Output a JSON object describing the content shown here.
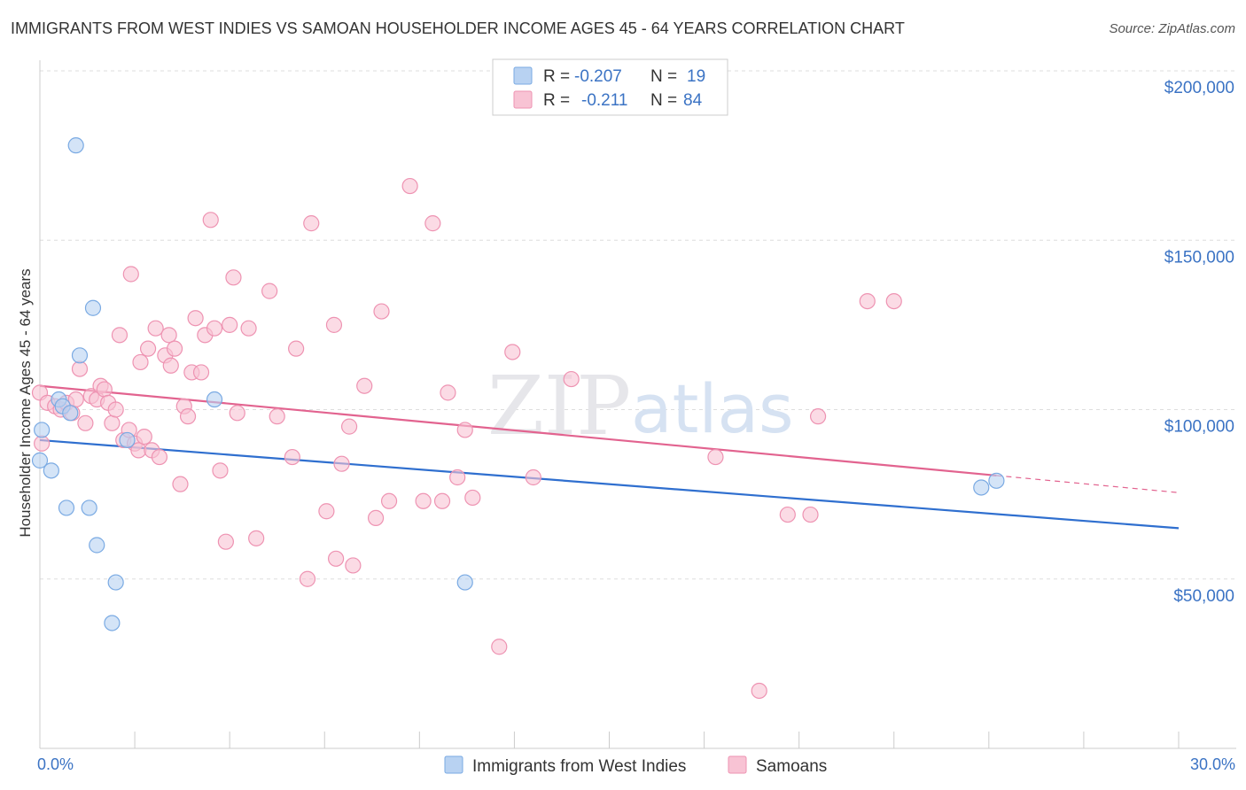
{
  "header": {
    "title": "IMMIGRANTS FROM WEST INDIES VS SAMOAN HOUSEHOLDER INCOME AGES 45 - 64 YEARS CORRELATION CHART",
    "source": "Source: ZipAtlas.com"
  },
  "watermark": {
    "part1": "ZIP",
    "part2": "atlas"
  },
  "colors": {
    "blue_fill": "#b8d2f2",
    "blue_stroke": "#7aaae3",
    "blue_line": "#2f6fcf",
    "pink_fill": "#f8c3d4",
    "pink_stroke": "#ee93b2",
    "pink_line": "#e2638f",
    "axis_text": "#3b73c4",
    "grid": "#dddddd"
  },
  "legend": {
    "rows": [
      {
        "r_label": "R =",
        "r_value": "-0.207",
        "n_label": "N =",
        "n_value": "19"
      },
      {
        "r_label": "R =",
        "r_value": "-0.211",
        "n_label": "N =",
        "n_value": "84"
      }
    ]
  },
  "chart_data": {
    "type": "scatter",
    "title": "IMMIGRANTS FROM WEST INDIES VS SAMOAN HOUSEHOLDER INCOME AGES 45 - 64 YEARS CORRELATION CHART",
    "xlabel": "",
    "ylabel": "Householder Income Ages 45 - 64 years",
    "xlim": [
      0,
      30
    ],
    "ylim": [
      0,
      200000
    ],
    "x_tick_labels": [
      "0.0%",
      "30.0%"
    ],
    "y_ticks": [
      {
        "value": 200000,
        "label": "$200,000"
      },
      {
        "value": 150000,
        "label": "$150,000"
      },
      {
        "value": 100000,
        "label": "$100,000"
      },
      {
        "value": 50000,
        "label": "$50,000"
      }
    ],
    "series": [
      {
        "name": "Immigrants from West Indies",
        "color": "blue",
        "R": -0.207,
        "N": 19,
        "trend": {
          "x0": 0,
          "y0": 91000,
          "x1": 30,
          "y1": 65000,
          "solid_until": 30
        },
        "points": [
          [
            0.0,
            85000
          ],
          [
            0.05,
            94000
          ],
          [
            0.3,
            82000
          ],
          [
            0.5,
            103000
          ],
          [
            0.6,
            101000
          ],
          [
            0.7,
            71000
          ],
          [
            0.8,
            99000
          ],
          [
            0.95,
            178000
          ],
          [
            1.05,
            116000
          ],
          [
            1.3,
            71000
          ],
          [
            1.4,
            130000
          ],
          [
            1.5,
            60000
          ],
          [
            1.9,
            37000
          ],
          [
            2.0,
            49000
          ],
          [
            2.3,
            91000
          ],
          [
            4.6,
            103000
          ],
          [
            11.2,
            49000
          ],
          [
            24.8,
            77000
          ],
          [
            25.2,
            79000
          ]
        ]
      },
      {
        "name": "Samoans",
        "color": "pink",
        "R": -0.211,
        "N": 84,
        "trend": {
          "x0": 0,
          "y0": 107000,
          "x1": 30,
          "y1": 75500,
          "solid_until": 25.2
        },
        "points": [
          [
            0.0,
            105000
          ],
          [
            0.05,
            90000
          ],
          [
            0.2,
            102000
          ],
          [
            0.4,
            101000
          ],
          [
            0.55,
            100000
          ],
          [
            0.7,
            102000
          ],
          [
            0.85,
            99000
          ],
          [
            0.95,
            103000
          ],
          [
            1.05,
            112000
          ],
          [
            1.2,
            96000
          ],
          [
            1.35,
            104000
          ],
          [
            1.5,
            103000
          ],
          [
            1.6,
            107000
          ],
          [
            1.7,
            106000
          ],
          [
            1.8,
            102000
          ],
          [
            1.9,
            96000
          ],
          [
            2.0,
            100000
          ],
          [
            2.1,
            122000
          ],
          [
            2.2,
            91000
          ],
          [
            2.35,
            94000
          ],
          [
            2.4,
            140000
          ],
          [
            2.5,
            90000
          ],
          [
            2.6,
            88000
          ],
          [
            2.65,
            114000
          ],
          [
            2.75,
            92000
          ],
          [
            2.85,
            118000
          ],
          [
            2.95,
            88000
          ],
          [
            3.05,
            124000
          ],
          [
            3.15,
            86000
          ],
          [
            3.3,
            116000
          ],
          [
            3.4,
            122000
          ],
          [
            3.45,
            113000
          ],
          [
            3.55,
            118000
          ],
          [
            3.7,
            78000
          ],
          [
            3.8,
            101000
          ],
          [
            3.9,
            98000
          ],
          [
            4.0,
            111000
          ],
          [
            4.1,
            127000
          ],
          [
            4.25,
            111000
          ],
          [
            4.35,
            122000
          ],
          [
            4.5,
            156000
          ],
          [
            4.6,
            124000
          ],
          [
            4.75,
            82000
          ],
          [
            4.9,
            61000
          ],
          [
            5.0,
            125000
          ],
          [
            5.1,
            139000
          ],
          [
            5.2,
            99000
          ],
          [
            5.5,
            124000
          ],
          [
            5.7,
            62000
          ],
          [
            6.05,
            135000
          ],
          [
            6.25,
            98000
          ],
          [
            6.65,
            86000
          ],
          [
            6.75,
            118000
          ],
          [
            7.05,
            50000
          ],
          [
            7.15,
            155000
          ],
          [
            7.55,
            70000
          ],
          [
            7.75,
            125000
          ],
          [
            7.8,
            56000
          ],
          [
            7.95,
            84000
          ],
          [
            8.15,
            95000
          ],
          [
            8.25,
            54000
          ],
          [
            8.55,
            107000
          ],
          [
            8.85,
            68000
          ],
          [
            9.0,
            129000
          ],
          [
            9.2,
            73000
          ],
          [
            9.75,
            166000
          ],
          [
            10.1,
            73000
          ],
          [
            10.35,
            155000
          ],
          [
            10.6,
            73000
          ],
          [
            10.75,
            105000
          ],
          [
            11.0,
            80000
          ],
          [
            11.2,
            94000
          ],
          [
            11.4,
            74000
          ],
          [
            12.1,
            30000
          ],
          [
            12.45,
            117000
          ],
          [
            13.0,
            80000
          ],
          [
            14.0,
            109000
          ],
          [
            17.8,
            86000
          ],
          [
            18.95,
            17000
          ],
          [
            19.7,
            69000
          ],
          [
            20.3,
            69000
          ],
          [
            20.5,
            98000
          ],
          [
            21.8,
            132000
          ],
          [
            22.5,
            132000
          ]
        ]
      }
    ]
  },
  "bottom_legend": [
    {
      "label": "Immigrants from West Indies",
      "color": "blue"
    },
    {
      "label": "Samoans",
      "color": "pink"
    }
  ]
}
